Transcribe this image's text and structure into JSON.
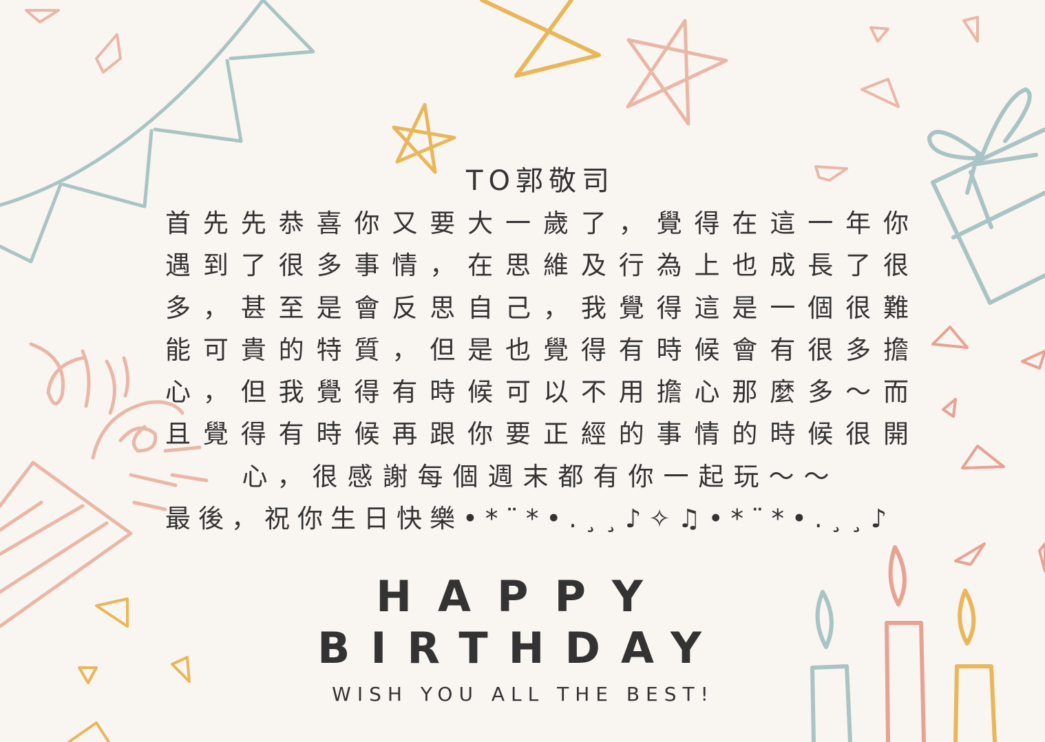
{
  "card": {
    "to_line": "TO郭敬司",
    "body_lines": [
      "首先先恭喜你又要大一歲了，覺得在這一年你",
      "遇到了很多事情，在思維及行為上也成長了很",
      "多，甚至是會反思自己，我覺得這是一個很難",
      "能可貴的特質，但是也覺得有時候會有很多擔",
      "心，但我覺得有時候可以不用擔心那麼多～而",
      "且覺得有時候再跟你要正經的事情的時候很開",
      "心，很感謝每個週末都有你一起玩～～"
    ],
    "closing": "最後，祝你生日快樂•*¨*•.¸¸♪✧♫•*¨*•.¸¸♪",
    "happy": "HAPPY",
    "birthday": "BIRTHDAY",
    "wish": "WISH YOU ALL THE BEST!"
  },
  "colors": {
    "background": "#f9f5f1",
    "text": "#333333",
    "blue": "#a9c4c4",
    "pink": "#eab7a6",
    "yellow": "#e9b75a",
    "coral": "#e8a292"
  }
}
